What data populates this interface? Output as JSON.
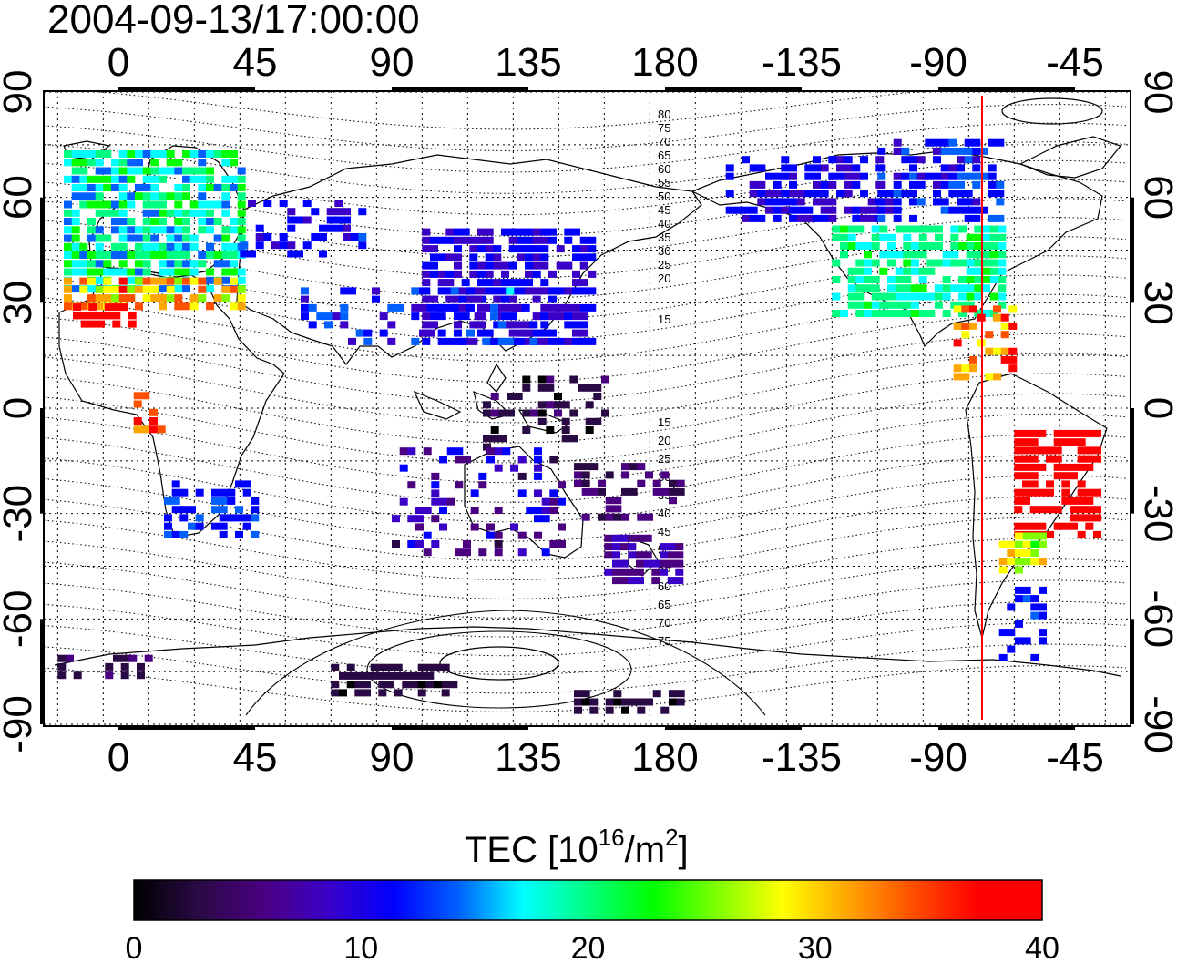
{
  "title": "2004-09-13/17:00:00",
  "map": {
    "lon_ticks": [
      "0",
      "45",
      "90",
      "135",
      "180",
      "-135",
      "-90",
      "-45"
    ],
    "lat_ticks": [
      "90",
      "60",
      "30",
      "0",
      "-30",
      "-60",
      "-90"
    ],
    "contour_labels_north": [
      "80",
      "75",
      "70",
      "65",
      "60",
      "55",
      "50",
      "45",
      "40",
      "35",
      "30",
      "25",
      "20",
      "15"
    ],
    "contour_labels_south": [
      "15",
      "20",
      "25",
      "30",
      "35",
      "40",
      "45",
      "50",
      "55",
      "60",
      "65",
      "70",
      "75"
    ],
    "terminator_color": "#ff0000"
  },
  "colorbar": {
    "title_main": "TEC  [10",
    "title_exp": "16",
    "title_unit": "/m",
    "title_unit_exp": "2",
    "title_close": "]",
    "ticks": [
      "0",
      "10",
      "20",
      "30",
      "40"
    ],
    "stops": [
      "#000000",
      "#2a0a45",
      "#4b0082",
      "#3a00c8",
      "#0000ff",
      "#0060ff",
      "#00ffff",
      "#00ff80",
      "#00ff00",
      "#80ff00",
      "#ffff00",
      "#ffa500",
      "#ff5000",
      "#ff0000",
      "#ff0000"
    ]
  }
}
